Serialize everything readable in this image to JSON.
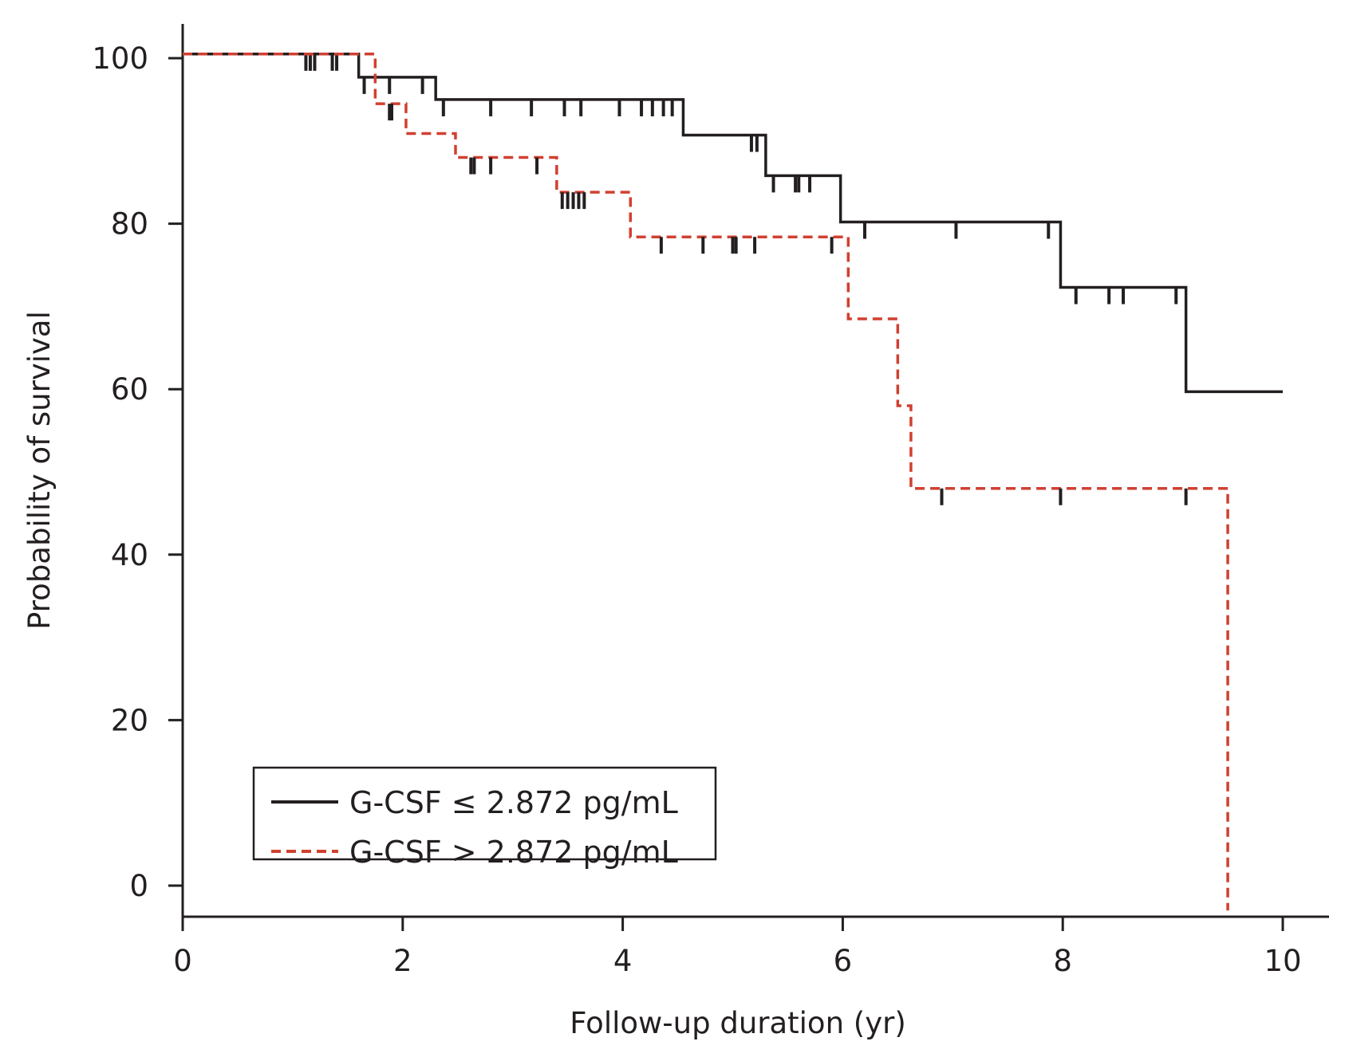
{
  "chart_data": {
    "type": "line",
    "subtype": "kaplan-meier",
    "xlabel": "Follow-up duration (yr)",
    "ylabel": "Probability of survival",
    "xlim": [
      0,
      10
    ],
    "ylim": [
      0,
      100
    ],
    "x_ticks": [
      0,
      2,
      4,
      6,
      8,
      10
    ],
    "y_ticks": [
      0,
      20,
      40,
      60,
      80,
      100
    ],
    "legend_position": "bottom-left",
    "series": [
      {
        "name": "G-CSF ≤ 2.872 pg/mL",
        "color": "#231f20",
        "style": "solid",
        "steps": [
          [
            0,
            100.5
          ],
          [
            1.6,
            97.7
          ],
          [
            2.3,
            95.0
          ],
          [
            4.55,
            90.7
          ],
          [
            5.3,
            85.8
          ],
          [
            5.98,
            80.2
          ],
          [
            7.98,
            72.3
          ],
          [
            9.12,
            59.7
          ],
          [
            10.0,
            59.7
          ]
        ],
        "censored": [
          1.12,
          1.16,
          1.2,
          1.36,
          1.4,
          1.65,
          1.88,
          2.18,
          2.37,
          2.8,
          3.17,
          3.47,
          3.62,
          3.97,
          4.17,
          4.27,
          4.37,
          4.45,
          5.17,
          5.22,
          5.37,
          5.57,
          5.6,
          5.7,
          6.2,
          7.03,
          7.87,
          8.12,
          8.42,
          8.55,
          9.03
        ]
      },
      {
        "name": "G-CSF > 2.872 pg/mL",
        "color": "#d04030",
        "style": "dashed",
        "steps": [
          [
            0,
            100.5
          ],
          [
            1.75,
            94.5
          ],
          [
            2.03,
            90.9
          ],
          [
            2.48,
            88.0
          ],
          [
            3.4,
            83.8
          ],
          [
            4.07,
            78.4
          ],
          [
            6.05,
            68.5
          ],
          [
            6.5,
            58.0
          ],
          [
            6.62,
            48.0
          ],
          [
            9.5,
            -3.0
          ]
        ],
        "censored": [
          1.88,
          1.9,
          2.62,
          2.65,
          2.8,
          3.22,
          3.45,
          3.5,
          3.55,
          3.6,
          3.65,
          4.35,
          4.73,
          5.0,
          5.03,
          5.2,
          5.9,
          6.9,
          7.98,
          9.12
        ]
      }
    ]
  }
}
